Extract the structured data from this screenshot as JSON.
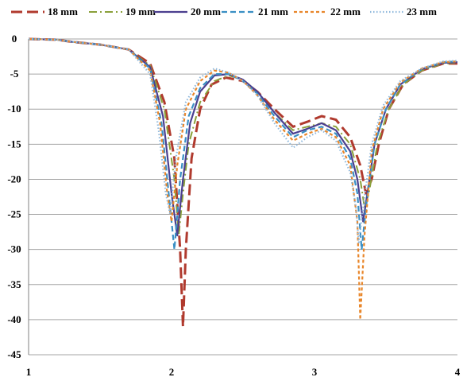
{
  "chart_data": {
    "type": "line",
    "xlim": [
      1,
      4
    ],
    "ylim": [
      -45,
      0
    ],
    "x_ticks": [
      "1",
      "2",
      "3",
      "4"
    ],
    "y_ticks": [
      "0",
      "-5",
      "-10",
      "-15",
      "-20",
      "-25",
      "-30",
      "-35",
      "-40",
      "-45"
    ],
    "grid": "horizontal",
    "legend_position": "top",
    "series": [
      {
        "name": "18 mm",
        "color": "#b03a2e",
        "style": "long-dash",
        "points": [
          [
            1,
            0
          ],
          [
            1.2,
            -0.1
          ],
          [
            1.3,
            -0.4
          ],
          [
            1.5,
            -0.8
          ],
          [
            1.7,
            -1.5
          ],
          [
            1.85,
            -3.5
          ],
          [
            1.95,
            -9
          ],
          [
            2.02,
            -17
          ],
          [
            2.06,
            -30
          ],
          [
            2.08,
            -41
          ],
          [
            2.1,
            -30
          ],
          [
            2.14,
            -17
          ],
          [
            2.2,
            -10
          ],
          [
            2.28,
            -6.5
          ],
          [
            2.38,
            -5.5
          ],
          [
            2.5,
            -6
          ],
          [
            2.6,
            -7.5
          ],
          [
            2.72,
            -10
          ],
          [
            2.85,
            -12.5
          ],
          [
            2.95,
            -11.8
          ],
          [
            3.05,
            -11
          ],
          [
            3.15,
            -11.5
          ],
          [
            3.25,
            -14
          ],
          [
            3.32,
            -18
          ],
          [
            3.36,
            -22
          ],
          [
            3.4,
            -20
          ],
          [
            3.45,
            -15
          ],
          [
            3.52,
            -10
          ],
          [
            3.62,
            -6.5
          ],
          [
            3.75,
            -4.5
          ],
          [
            3.9,
            -3.5
          ],
          [
            4,
            -3.5
          ]
        ]
      },
      {
        "name": "19 mm",
        "color": "#8aa03a",
        "style": "dash-dot",
        "points": [
          [
            1,
            0
          ],
          [
            1.2,
            -0.1
          ],
          [
            1.3,
            -0.4
          ],
          [
            1.5,
            -0.8
          ],
          [
            1.7,
            -1.5
          ],
          [
            1.85,
            -3.8
          ],
          [
            1.95,
            -10
          ],
          [
            2.02,
            -20
          ],
          [
            2.05,
            -28
          ],
          [
            2.08,
            -22
          ],
          [
            2.12,
            -15
          ],
          [
            2.2,
            -9
          ],
          [
            2.3,
            -6
          ],
          [
            2.4,
            -5.2
          ],
          [
            2.5,
            -5.8
          ],
          [
            2.6,
            -7.5
          ],
          [
            2.72,
            -10.5
          ],
          [
            2.85,
            -13
          ],
          [
            2.95,
            -12.5
          ],
          [
            3.05,
            -12
          ],
          [
            3.15,
            -12.5
          ],
          [
            3.25,
            -15
          ],
          [
            3.32,
            -20
          ],
          [
            3.35,
            -24
          ],
          [
            3.38,
            -22
          ],
          [
            3.44,
            -15
          ],
          [
            3.52,
            -10
          ],
          [
            3.62,
            -6.5
          ],
          [
            3.75,
            -4.5
          ],
          [
            3.9,
            -3.5
          ],
          [
            4,
            -3.4
          ]
        ]
      },
      {
        "name": "20 mm",
        "color": "#4b3f8f",
        "style": "solid",
        "points": [
          [
            1,
            0
          ],
          [
            1.2,
            -0.1
          ],
          [
            1.3,
            -0.4
          ],
          [
            1.5,
            -0.8
          ],
          [
            1.7,
            -1.5
          ],
          [
            1.85,
            -4
          ],
          [
            1.94,
            -11
          ],
          [
            2.0,
            -22
          ],
          [
            2.04,
            -28
          ],
          [
            2.08,
            -20
          ],
          [
            2.13,
            -12
          ],
          [
            2.2,
            -7.5
          ],
          [
            2.3,
            -5.2
          ],
          [
            2.4,
            -5
          ],
          [
            2.5,
            -5.8
          ],
          [
            2.6,
            -7.5
          ],
          [
            2.72,
            -10.5
          ],
          [
            2.85,
            -13.5
          ],
          [
            2.95,
            -12.8
          ],
          [
            3.05,
            -12
          ],
          [
            3.15,
            -13
          ],
          [
            3.25,
            -16
          ],
          [
            3.3,
            -20
          ],
          [
            3.34,
            -26
          ],
          [
            3.37,
            -22
          ],
          [
            3.42,
            -15
          ],
          [
            3.5,
            -10
          ],
          [
            3.6,
            -6.5
          ],
          [
            3.75,
            -4.3
          ],
          [
            3.9,
            -3.4
          ],
          [
            4,
            -3.3
          ]
        ]
      },
      {
        "name": "21 mm",
        "color": "#3a8fc4",
        "style": "dash",
        "points": [
          [
            1,
            0
          ],
          [
            1.2,
            -0.1
          ],
          [
            1.3,
            -0.4
          ],
          [
            1.5,
            -0.8
          ],
          [
            1.7,
            -1.5
          ],
          [
            1.85,
            -4.2
          ],
          [
            1.93,
            -12
          ],
          [
            1.98,
            -22
          ],
          [
            2.02,
            -30
          ],
          [
            2.06,
            -20
          ],
          [
            2.12,
            -11
          ],
          [
            2.2,
            -7
          ],
          [
            2.3,
            -5
          ],
          [
            2.4,
            -5
          ],
          [
            2.5,
            -6
          ],
          [
            2.6,
            -7.8
          ],
          [
            2.72,
            -11
          ],
          [
            2.85,
            -14
          ],
          [
            2.95,
            -13
          ],
          [
            3.05,
            -12.5
          ],
          [
            3.15,
            -13.5
          ],
          [
            3.25,
            -17
          ],
          [
            3.3,
            -22
          ],
          [
            3.33,
            -30
          ],
          [
            3.36,
            -24
          ],
          [
            3.42,
            -15
          ],
          [
            3.5,
            -10
          ],
          [
            3.6,
            -6.5
          ],
          [
            3.75,
            -4.3
          ],
          [
            3.9,
            -3.3
          ],
          [
            4,
            -3.2
          ]
        ]
      },
      {
        "name": "22 mm",
        "color": "#e8862a",
        "style": "short-dash",
        "points": [
          [
            1,
            0
          ],
          [
            1.2,
            -0.1
          ],
          [
            1.3,
            -0.4
          ],
          [
            1.5,
            -0.8
          ],
          [
            1.7,
            -1.5
          ],
          [
            1.85,
            -4.5
          ],
          [
            1.92,
            -12
          ],
          [
            1.97,
            -22
          ],
          [
            2.0,
            -26
          ],
          [
            2.04,
            -18
          ],
          [
            2.1,
            -10
          ],
          [
            2.2,
            -6
          ],
          [
            2.3,
            -4.5
          ],
          [
            2.4,
            -4.8
          ],
          [
            2.5,
            -6
          ],
          [
            2.6,
            -8
          ],
          [
            2.72,
            -11.5
          ],
          [
            2.85,
            -14.5
          ],
          [
            2.95,
            -13.5
          ],
          [
            3.05,
            -12.8
          ],
          [
            3.15,
            -14
          ],
          [
            3.25,
            -18
          ],
          [
            3.3,
            -26
          ],
          [
            3.32,
            -40
          ],
          [
            3.35,
            -28
          ],
          [
            3.4,
            -16
          ],
          [
            3.48,
            -10
          ],
          [
            3.6,
            -6.2
          ],
          [
            3.75,
            -4.2
          ],
          [
            3.9,
            -3.3
          ],
          [
            4,
            -3.2
          ]
        ]
      },
      {
        "name": "23 mm",
        "color": "#8fb8dc",
        "style": "dotted",
        "points": [
          [
            1,
            0
          ],
          [
            1.2,
            -0.1
          ],
          [
            1.3,
            -0.4
          ],
          [
            1.5,
            -0.8
          ],
          [
            1.7,
            -1.5
          ],
          [
            1.85,
            -5
          ],
          [
            1.91,
            -13
          ],
          [
            1.96,
            -22
          ],
          [
            1.99,
            -25
          ],
          [
            2.03,
            -17
          ],
          [
            2.1,
            -9
          ],
          [
            2.2,
            -5.5
          ],
          [
            2.3,
            -4.2
          ],
          [
            2.4,
            -4.8
          ],
          [
            2.5,
            -6
          ],
          [
            2.6,
            -8
          ],
          [
            2.72,
            -12
          ],
          [
            2.85,
            -15.5
          ],
          [
            2.95,
            -14
          ],
          [
            3.05,
            -13
          ],
          [
            3.15,
            -14.5
          ],
          [
            3.25,
            -19
          ],
          [
            3.29,
            -24
          ],
          [
            3.31,
            -29
          ],
          [
            3.34,
            -24
          ],
          [
            3.4,
            -15
          ],
          [
            3.48,
            -9.5
          ],
          [
            3.6,
            -6
          ],
          [
            3.75,
            -4.2
          ],
          [
            3.9,
            -3.2
          ],
          [
            4,
            -3.1
          ]
        ]
      }
    ]
  }
}
